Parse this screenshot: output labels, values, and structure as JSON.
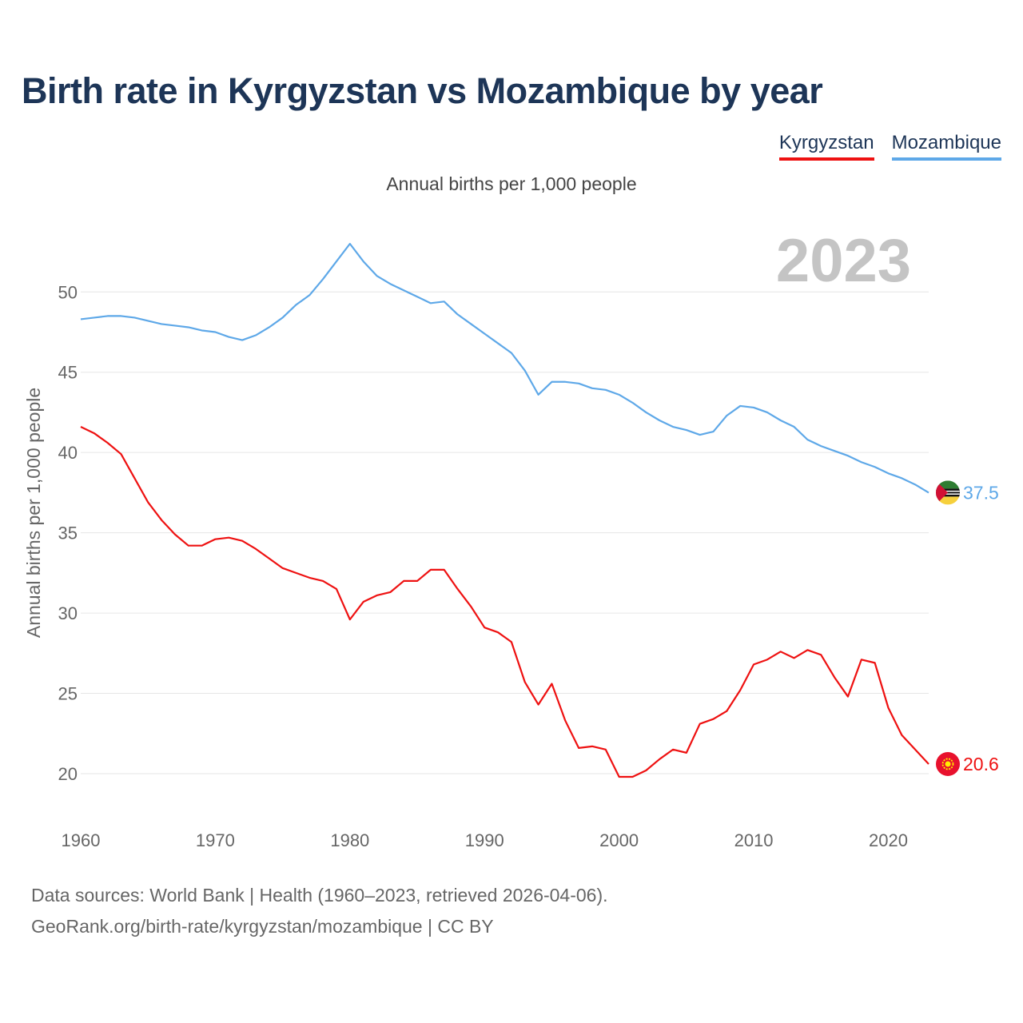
{
  "title": "Birth rate in Kyrgyzstan vs Mozambique by year",
  "subtitle": "Annual births per 1,000 people",
  "legend": [
    {
      "label": "Kyrgyzstan",
      "color": "#ee1111"
    },
    {
      "label": "Mozambique",
      "color": "#5ea8e8"
    }
  ],
  "year_watermark": "2023",
  "source_line1": "Data sources: World Bank | Health (1960–2023, retrieved 2026-04-06).",
  "source_line2": "GeoRank.org/birth-rate/kyrgyzstan/mozambique | CC BY",
  "chart_data": {
    "type": "line",
    "title": "Birth rate in Kyrgyzstan vs Mozambique by year",
    "xlabel": "",
    "ylabel": "Annual births per 1,000 people",
    "xlim": [
      1960,
      2023
    ],
    "ylim": [
      20,
      53
    ],
    "xticks": [
      1960,
      1970,
      1980,
      1990,
      2000,
      2010,
      2020
    ],
    "yticks": [
      20,
      25,
      30,
      35,
      40,
      45,
      50
    ],
    "grid": true,
    "x": [
      1960,
      1961,
      1962,
      1963,
      1964,
      1965,
      1966,
      1967,
      1968,
      1969,
      1970,
      1971,
      1972,
      1973,
      1974,
      1975,
      1976,
      1977,
      1978,
      1979,
      1980,
      1981,
      1982,
      1983,
      1984,
      1985,
      1986,
      1987,
      1988,
      1989,
      1990,
      1991,
      1992,
      1993,
      1994,
      1995,
      1996,
      1997,
      1998,
      1999,
      2000,
      2001,
      2002,
      2003,
      2004,
      2005,
      2006,
      2007,
      2008,
      2009,
      2010,
      2011,
      2012,
      2013,
      2014,
      2015,
      2016,
      2017,
      2018,
      2019,
      2020,
      2021,
      2022,
      2023
    ],
    "series": [
      {
        "name": "Kyrgyzstan",
        "color": "#ee1111",
        "end_label": "20.6",
        "values": [
          41.6,
          41.2,
          40.6,
          39.9,
          38.4,
          36.9,
          35.8,
          34.9,
          34.2,
          34.2,
          34.6,
          34.7,
          34.5,
          34.0,
          33.4,
          32.8,
          32.5,
          32.2,
          32.0,
          31.5,
          29.6,
          30.7,
          31.1,
          31.3,
          32.0,
          32.0,
          32.7,
          32.7,
          31.5,
          30.4,
          29.1,
          28.8,
          28.2,
          25.7,
          24.3,
          25.6,
          23.3,
          21.6,
          21.7,
          21.5,
          19.8,
          19.8,
          20.2,
          20.9,
          21.5,
          21.3,
          23.1,
          23.4,
          23.9,
          25.2,
          26.8,
          27.1,
          27.6,
          27.2,
          27.7,
          27.4,
          26.0,
          24.8,
          27.1,
          26.9,
          24.1,
          22.4,
          21.5,
          20.6
        ]
      },
      {
        "name": "Mozambique",
        "color": "#5ea8e8",
        "end_label": "37.5",
        "values": [
          48.3,
          48.4,
          48.5,
          48.5,
          48.4,
          48.2,
          48.0,
          47.9,
          47.8,
          47.6,
          47.5,
          47.2,
          47.0,
          47.3,
          47.8,
          48.4,
          49.2,
          49.8,
          50.8,
          51.9,
          53.0,
          51.9,
          51.0,
          50.5,
          50.1,
          49.7,
          49.3,
          49.4,
          48.6,
          48.0,
          47.4,
          46.8,
          46.2,
          45.1,
          43.6,
          44.4,
          44.4,
          44.3,
          44.0,
          43.9,
          43.6,
          43.1,
          42.5,
          42.0,
          41.6,
          41.4,
          41.1,
          41.3,
          42.3,
          42.9,
          42.8,
          42.5,
          42.0,
          41.6,
          40.8,
          40.4,
          40.1,
          39.8,
          39.4,
          39.1,
          38.7,
          38.4,
          38.0,
          37.5
        ]
      }
    ]
  }
}
